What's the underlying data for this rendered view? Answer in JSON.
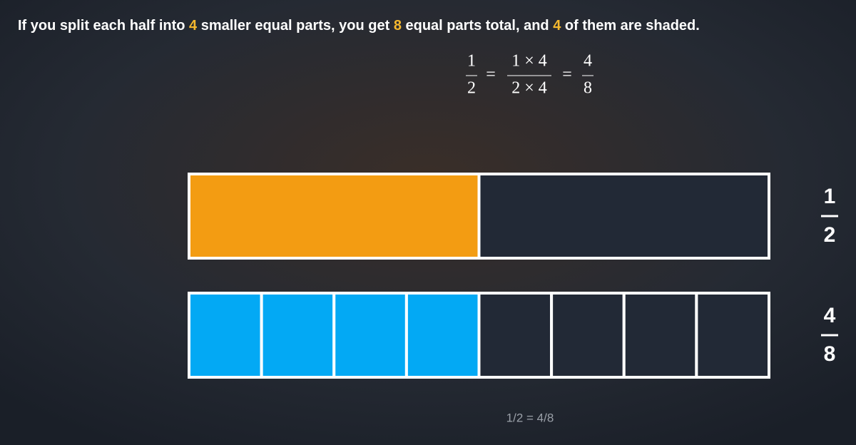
{
  "instruction": {
    "parts": [
      "If you split each half into ",
      "4",
      " smaller equal parts, you get ",
      "8",
      " equal parts total, and ",
      "4",
      " of them are shaded."
    ],
    "highlight_color": "#f5b82e"
  },
  "equation": {
    "operator": "=",
    "terms": [
      {
        "num": "1",
        "den": "2"
      },
      {
        "num": "1 × 4",
        "den": "2 × 4"
      },
      {
        "num": "4",
        "den": "8"
      }
    ]
  },
  "bars": [
    {
      "parts": 2,
      "shaded": 1,
      "color": "#f39c12",
      "label": {
        "num": "1",
        "den": "2"
      }
    },
    {
      "parts": 8,
      "shaded": 4,
      "color": "#03a9f4",
      "label": {
        "num": "4",
        "den": "8"
      }
    }
  ],
  "caption": "1/2 = 4/8"
}
